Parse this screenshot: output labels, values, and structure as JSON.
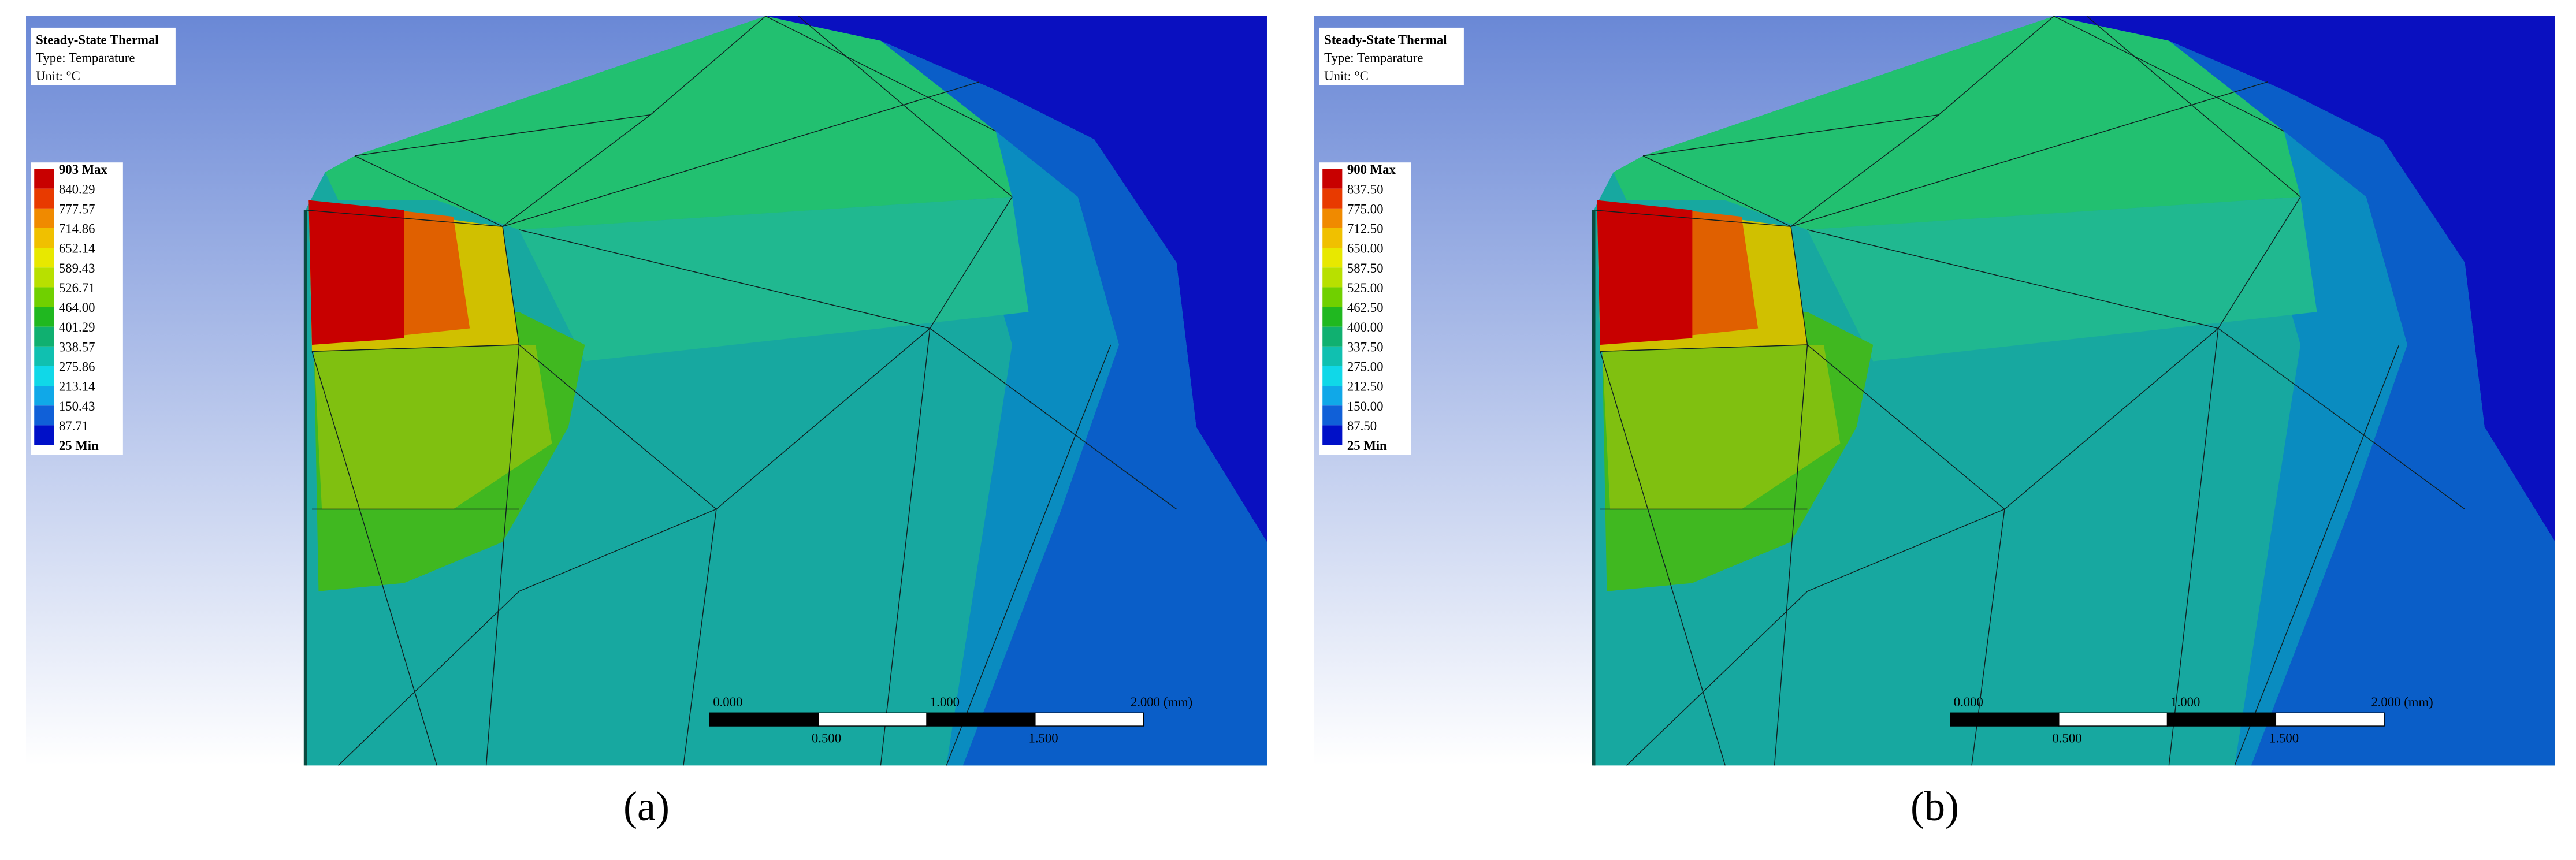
{
  "panels": [
    {
      "header": [
        "Steady-State Thermal",
        "Type: Temparature",
        "Unit: °C"
      ],
      "legend": [
        "903 Max",
        "840.29",
        "777.57",
        "714.86",
        "652.14",
        "589.43",
        "526.71",
        "464.00",
        "401.29",
        "338.57",
        "275.86",
        "213.14",
        "150.43",
        "87.71",
        "25 Min"
      ],
      "scale_top": [
        "0.000",
        "1.000",
        "2.000 (mm)"
      ],
      "scale_bottom": [
        "0.500",
        "1.500"
      ],
      "caption": "(a)"
    },
    {
      "header": [
        "Steady-State Thermal",
        "Type: Temparature",
        "Unit: °C"
      ],
      "legend": [
        "900 Max",
        "837.50",
        "775.00",
        "712.50",
        "650.00",
        "587.50",
        "525.00",
        "462.50",
        "400.00",
        "337.50",
        "275.00",
        "212.50",
        "150.00",
        "87.50",
        "25 Min"
      ],
      "scale_top": [
        "0.000",
        "1.000",
        "2.000 (mm)"
      ],
      "scale_bottom": [
        "0.500",
        "1.500"
      ],
      "caption": "(b)"
    }
  ]
}
